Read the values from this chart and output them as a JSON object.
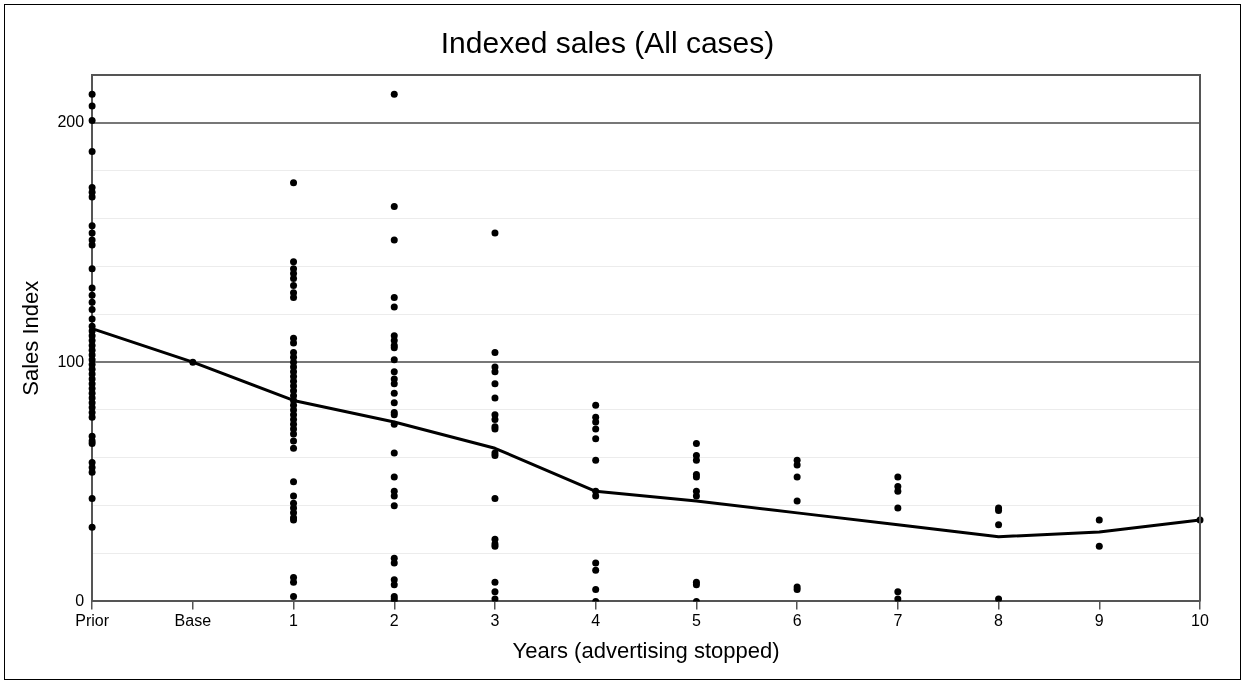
{
  "chart_data": {
    "type": "scatter",
    "title": "Indexed sales (All cases)",
    "xlabel": "Years (advertising stopped)",
    "ylabel": "Sales Index",
    "categories": [
      "Prior",
      "Base",
      "1",
      "2",
      "3",
      "4",
      "5",
      "6",
      "7",
      "8",
      "9",
      "10"
    ],
    "ylim": [
      0,
      220
    ],
    "yticks": [
      0,
      {
        "value": 20,
        "label": null
      },
      {
        "value": 40,
        "label": null
      },
      {
        "value": 60,
        "label": null
      },
      {
        "value": 80,
        "label": null
      },
      100,
      {
        "value": 120,
        "label": null
      },
      {
        "value": 140,
        "label": null
      },
      {
        "value": 160,
        "label": null
      },
      {
        "value": 180,
        "label": null
      },
      200,
      {
        "value": 220,
        "label": null
      }
    ],
    "grid": "y",
    "legend": false,
    "marker": "circle",
    "series": [
      {
        "color": "#000000",
        "x": [
          "Prior",
          "Prior",
          "Prior",
          "Prior",
          "Prior",
          "Prior",
          "Prior",
          "Prior",
          "Prior",
          "Prior",
          "Prior",
          "Prior",
          "Prior",
          "Prior",
          "Prior",
          "Prior",
          "Prior",
          "Prior",
          "Prior",
          "Prior",
          "Prior",
          "Prior",
          "Prior",
          "Prior",
          "Prior",
          "Prior",
          "Prior",
          "Prior",
          "Prior",
          "Prior",
          "Prior",
          "Prior",
          "Prior",
          "Prior",
          "Prior",
          "Prior",
          "Prior",
          "Prior",
          "Prior",
          "Prior",
          "Prior",
          "Prior",
          "Prior",
          "Prior",
          "Prior",
          "Base",
          "1",
          "1",
          "1",
          "1",
          "1",
          "1",
          "1",
          "1",
          "1",
          "1",
          "1",
          "1",
          "1",
          "1",
          "1",
          "1",
          "1",
          "1",
          "1",
          "1",
          "1",
          "1",
          "1",
          "1",
          "1",
          "1",
          "1",
          "1",
          "1",
          "1",
          "1",
          "1",
          "1",
          "1",
          "1",
          "1",
          "1",
          "1",
          "1",
          "1",
          "2",
          "2",
          "2",
          "2",
          "2",
          "2",
          "2",
          "2",
          "2",
          "2",
          "2",
          "2",
          "2",
          "2",
          "2",
          "2",
          "2",
          "2",
          "2",
          "2",
          "2",
          "2",
          "2",
          "2",
          "2",
          "2",
          "2",
          "2",
          "2",
          "2",
          "3",
          "3",
          "3",
          "3",
          "3",
          "3",
          "3",
          "3",
          "3",
          "3",
          "3",
          "3",
          "3",
          "3",
          "3",
          "3",
          "3",
          "3",
          "3",
          "4",
          "4",
          "4",
          "4",
          "4",
          "4",
          "4",
          "4",
          "4",
          "4",
          "4",
          "4",
          "5",
          "5",
          "5",
          "5",
          "5",
          "5",
          "5",
          "5",
          "5",
          "5",
          "6",
          "6",
          "6",
          "6",
          "6",
          "6",
          "7",
          "7",
          "7",
          "7",
          "7",
          "7",
          "8",
          "8",
          "8",
          "8",
          "9",
          "9",
          "10"
        ],
        "values": [
          212,
          207,
          201,
          188,
          173,
          171,
          169,
          157,
          154,
          151,
          149,
          139,
          131,
          128,
          125,
          122,
          118,
          115,
          113,
          111,
          109,
          107,
          105,
          103,
          101,
          99,
          97,
          95,
          93,
          91,
          89,
          87,
          85,
          83,
          81,
          79,
          77,
          69,
          67,
          66,
          58,
          56,
          54,
          43,
          31,
          100,
          175,
          142,
          139,
          137,
          135,
          132,
          129,
          127,
          110,
          108,
          104,
          102,
          100,
          98,
          96,
          94,
          92,
          90,
          88,
          86,
          84,
          82,
          80,
          78,
          76,
          74,
          72,
          70,
          67,
          64,
          50,
          44,
          41,
          39,
          37,
          35,
          34,
          10,
          8,
          2,
          212,
          165,
          151,
          127,
          123,
          111,
          109,
          107,
          106,
          101,
          96,
          93,
          91,
          87,
          83,
          79,
          78,
          74,
          62,
          52,
          46,
          44,
          40,
          18,
          16,
          9,
          7,
          2,
          1,
          0,
          154,
          104,
          98,
          96,
          91,
          85,
          78,
          76,
          73,
          72,
          62,
          61,
          43,
          26,
          24,
          23,
          8,
          4,
          1,
          82,
          77,
          75,
          72,
          68,
          59,
          46,
          44,
          16,
          13,
          5,
          0,
          66,
          61,
          59,
          53,
          52,
          46,
          44,
          8,
          7,
          0,
          59,
          57,
          52,
          42,
          6,
          5,
          52,
          48,
          46,
          39,
          4,
          1,
          39,
          38,
          32,
          1,
          34,
          23,
          34
        ]
      },
      {
        "type": "line",
        "color": "#000000",
        "marker": "none",
        "values": [
          114,
          100,
          84,
          75,
          64,
          46,
          42,
          37,
          32,
          27,
          29,
          34
        ]
      }
    ]
  }
}
